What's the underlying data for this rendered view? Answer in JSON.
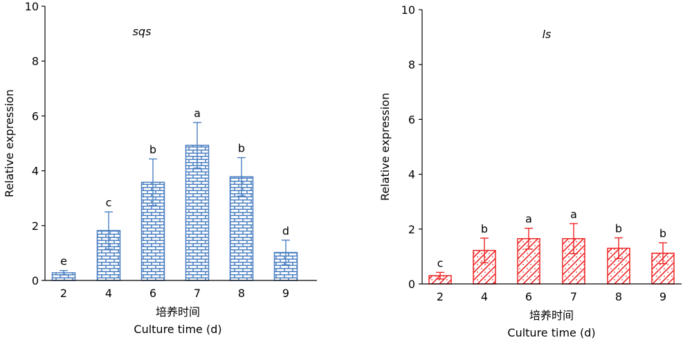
{
  "chart_data": [
    {
      "type": "bar",
      "title": "sqs",
      "xlabel_cn": "培养时间",
      "xlabel": "Culture time (d)",
      "ylabel": "Relative expression",
      "ylim": [
        0,
        10
      ],
      "yticks": [
        "0",
        "2",
        "4",
        "6",
        "8",
        "10"
      ],
      "categories": [
        "2",
        "4",
        "6",
        "7",
        "8",
        "9"
      ],
      "values": [
        0.28,
        1.82,
        3.58,
        4.93,
        3.78,
        1.02
      ],
      "errors": [
        0.08,
        0.68,
        0.85,
        0.83,
        0.7,
        0.45
      ],
      "letters": [
        "e",
        "c",
        "b",
        "a",
        "b",
        "d"
      ],
      "color": "#4a7fc1",
      "pattern": "brick"
    },
    {
      "type": "bar",
      "title": "ls",
      "xlabel_cn": "培养时间",
      "xlabel": "Culture time (d)",
      "ylabel": "Relative expression",
      "ylim": [
        0,
        10
      ],
      "yticks": [
        "0",
        "2",
        "4",
        "6",
        "8",
        "10"
      ],
      "categories": [
        "2",
        "4",
        "6",
        "7",
        "8",
        "9"
      ],
      "values": [
        0.3,
        1.22,
        1.65,
        1.65,
        1.3,
        1.12
      ],
      "errors": [
        0.12,
        0.45,
        0.38,
        0.55,
        0.38,
        0.38
      ],
      "letters": [
        "c",
        "b",
        "a",
        "a",
        "b",
        "b"
      ],
      "color": "#ee2222",
      "pattern": "diagonal"
    }
  ]
}
